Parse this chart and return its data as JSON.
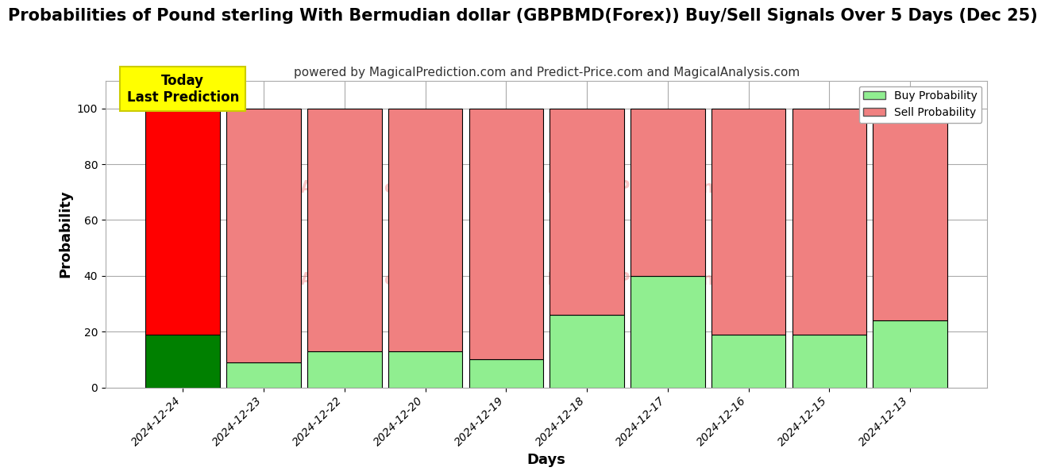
{
  "title": "Probabilities of Pound sterling With Bermudian dollar (GBPBMD(Forex)) Buy/Sell Signals Over 5 Days (Dec 25)",
  "subtitle": "powered by MagicalPrediction.com and Predict-Price.com and MagicalAnalysis.com",
  "xlabel": "Days",
  "ylabel": "Probability",
  "categories": [
    "2024-12-24",
    "2024-12-23",
    "2024-12-22",
    "2024-12-20",
    "2024-12-19",
    "2024-12-18",
    "2024-12-17",
    "2024-12-16",
    "2024-12-15",
    "2024-12-13"
  ],
  "buy_values": [
    19,
    9,
    13,
    13,
    10,
    26,
    40,
    19,
    19,
    24
  ],
  "sell_values": [
    81,
    91,
    87,
    87,
    90,
    74,
    60,
    81,
    81,
    76
  ],
  "first_bar_buy_color": "#008000",
  "first_bar_sell_color": "#ff0000",
  "other_buy_color": "#90EE90",
  "other_sell_color": "#F08080",
  "bar_edgecolor": "#000000",
  "ylim_display": 110,
  "yticks": [
    0,
    20,
    40,
    60,
    80,
    100
  ],
  "dashed_line_y": 110,
  "today_box_color": "#ffff00",
  "today_box_text": "Today\nLast Prediction",
  "legend_buy_label": "Buy Probability",
  "legend_sell_label": "Sell Probability",
  "background_color": "#ffffff",
  "grid_color": "#aaaaaa",
  "title_fontsize": 15,
  "subtitle_fontsize": 11,
  "axis_label_fontsize": 13,
  "tick_fontsize": 10,
  "bar_width": 0.92
}
